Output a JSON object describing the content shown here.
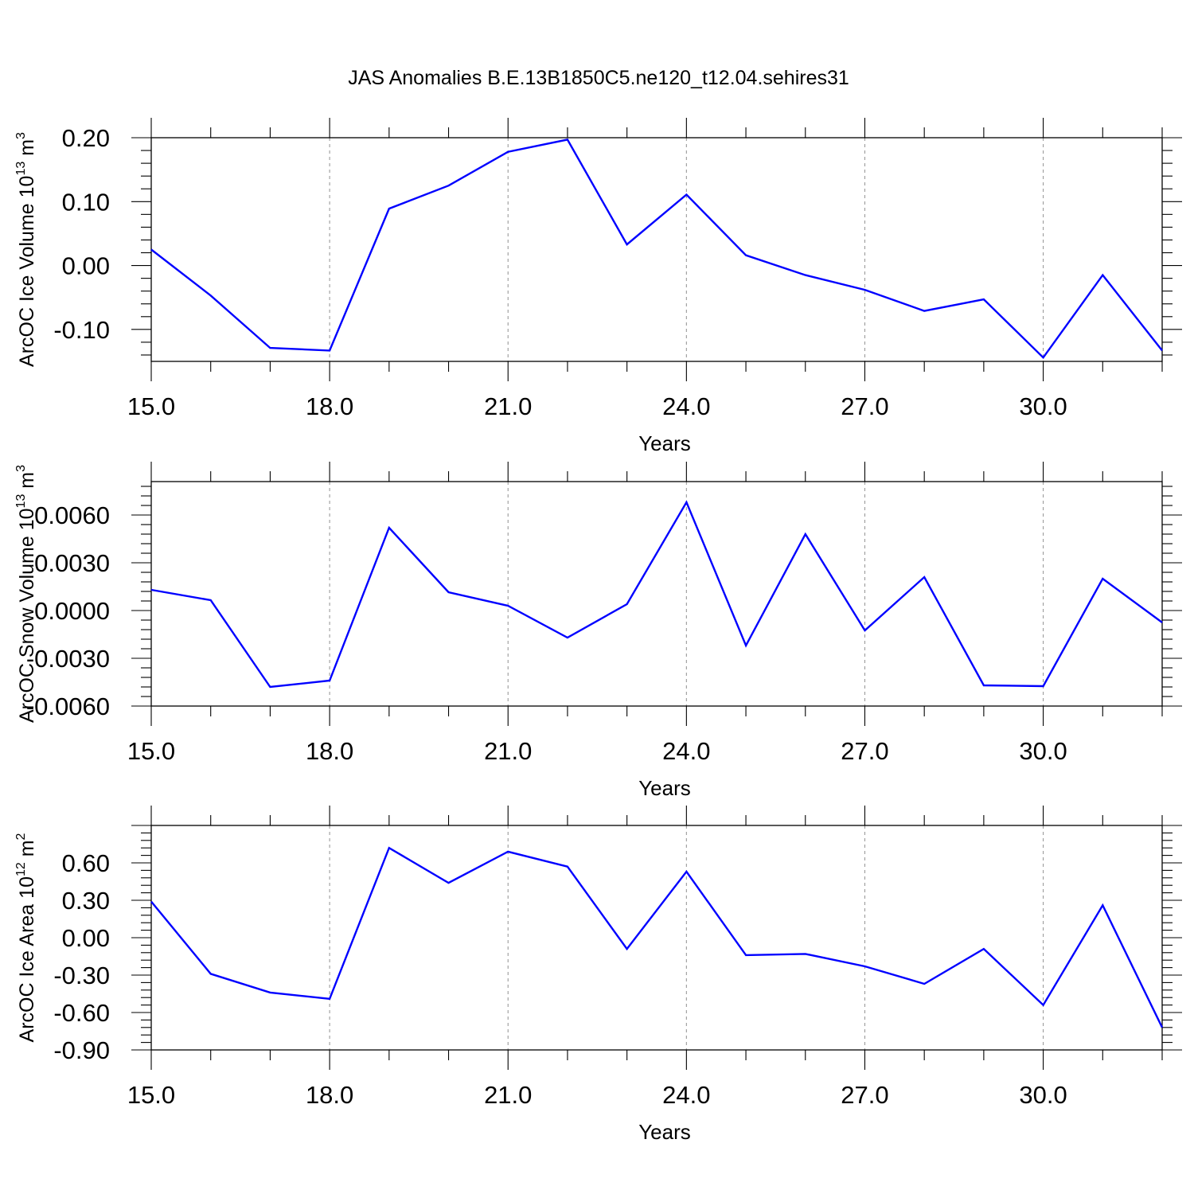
{
  "chart_data": {
    "title": "JAS Anomalies B.E.13B1850C5.ne120_t12.04.sehires31",
    "colors": {
      "line": "#0000ff",
      "grid": "#9a9a9a"
    },
    "grid": "vertical dashed lines at major x ticks",
    "panels": [
      {
        "type": "line",
        "ylabel": "ArcOC Ice Volume 10",
        "ylabel_exp": "13",
        "ylabel_unit": " m",
        "ylabel_unit_exp": "3",
        "xlabel": "Years",
        "xlim": [
          15,
          32
        ],
        "ylim": [
          -0.15,
          0.2
        ],
        "x_ticks": [
          "15.0",
          "18.0",
          "21.0",
          "24.0",
          "27.0",
          "30.0"
        ],
        "y_ticks": [
          "0.20",
          "0.10",
          "0.00",
          "-0.10"
        ],
        "y_tick_values": [
          0.2,
          0.1,
          0.0,
          -0.1
        ],
        "x": [
          15,
          16,
          17,
          18,
          19,
          20,
          21,
          22,
          23,
          24,
          25,
          26,
          27,
          28,
          29,
          30,
          31,
          32
        ],
        "y": [
          0.025,
          -0.047,
          -0.129,
          -0.133,
          0.089,
          0.125,
          0.178,
          0.197,
          0.033,
          0.111,
          0.016,
          -0.015,
          -0.038,
          -0.071,
          -0.053,
          -0.144,
          -0.015,
          -0.133
        ]
      },
      {
        "type": "line",
        "ylabel": "ArcOC Snow Volume 10",
        "ylabel_exp": "13",
        "ylabel_unit": " m",
        "ylabel_unit_exp": "3",
        "xlabel": "Years",
        "xlim": [
          15,
          32
        ],
        "ylim": [
          -0.006,
          0.0081
        ],
        "x_ticks": [
          "15.0",
          "18.0",
          "21.0",
          "24.0",
          "27.0",
          "30.0"
        ],
        "y_ticks": [
          "0.0060",
          "0.0030",
          "0.0000",
          "-0.0030",
          "-0.0060"
        ],
        "y_tick_values": [
          0.006,
          0.003,
          0.0,
          -0.003,
          -0.006
        ],
        "x": [
          15,
          16,
          17,
          18,
          19,
          20,
          21,
          22,
          23,
          24,
          25,
          26,
          27,
          28,
          29,
          30,
          31,
          32
        ],
        "y": [
          0.0013,
          0.00065,
          -0.0048,
          -0.0044,
          0.0052,
          0.00115,
          0.0003,
          -0.0017,
          0.0004,
          0.0068,
          -0.0022,
          0.0048,
          -0.00125,
          0.0021,
          -0.0047,
          -0.00475,
          0.002,
          -0.00075
        ]
      },
      {
        "type": "line",
        "ylabel": "ArcOC Ice Area 10",
        "ylabel_exp": "12",
        "ylabel_unit": " m",
        "ylabel_unit_exp": "2",
        "xlabel": "Years",
        "xlim": [
          15,
          32
        ],
        "ylim": [
          -0.9,
          0.9
        ],
        "x_ticks": [
          "15.0",
          "18.0",
          "21.0",
          "24.0",
          "27.0",
          "30.0"
        ],
        "y_ticks": [
          "0.60",
          "0.30",
          "0.00",
          "-0.30",
          "-0.60",
          "-0.90"
        ],
        "y_tick_values": [
          0.6,
          0.3,
          0.0,
          -0.3,
          -0.6,
          -0.9
        ],
        "x": [
          15,
          16,
          17,
          18,
          19,
          20,
          21,
          22,
          23,
          24,
          25,
          26,
          27,
          28,
          29,
          30,
          31,
          32
        ],
        "y": [
          0.29,
          -0.29,
          -0.44,
          -0.49,
          0.72,
          0.44,
          0.69,
          0.57,
          -0.09,
          0.53,
          -0.14,
          -0.13,
          -0.23,
          -0.37,
          -0.09,
          -0.54,
          0.26,
          -0.72
        ]
      }
    ]
  }
}
